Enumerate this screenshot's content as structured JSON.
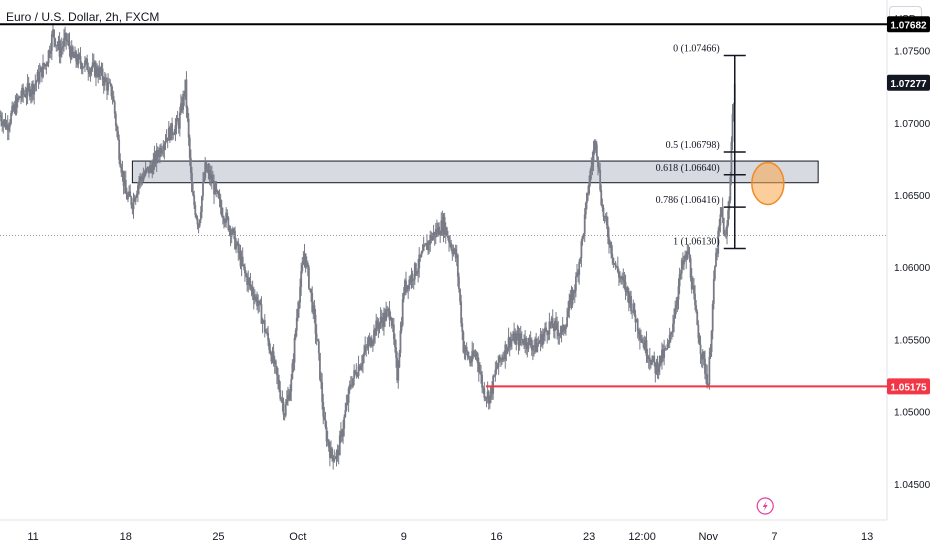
{
  "header": {
    "title": "Euro / U.S. Dollar, 2h, FXCM",
    "currency_button": "USD"
  },
  "colors": {
    "candle": "#787b86",
    "resistance_line": "#000000",
    "support_line": "#f23645",
    "zone_fill": "#d1d4dc",
    "highlight_circle": "#f7a64a",
    "current_price_tag": "#131722"
  },
  "chart_data": {
    "type": "line",
    "symbol": "EURUSD",
    "ylim": [
      1.0425,
      1.0785
    ],
    "y_ticks": [
      "1.07500",
      "1.07000",
      "1.06500",
      "1.06000",
      "1.05500",
      "1.05000",
      "1.04500"
    ],
    "x_ticks": [
      "11",
      "18",
      "25",
      "Oct",
      "9",
      "16",
      "23",
      "12:00",
      "Nov",
      "7",
      "13"
    ],
    "x_tick_days": [
      0,
      7,
      14,
      20,
      28,
      35,
      42,
      46,
      51,
      56,
      63
    ],
    "xlim_days": [
      -2.5,
      64.5
    ],
    "series": [
      {
        "days": [
          -2.5,
          -2,
          -1,
          0,
          1,
          1.5,
          2,
          2.5,
          3,
          4,
          5,
          6,
          6.5,
          7,
          7.5,
          8,
          9,
          10,
          11,
          11.5,
          12,
          12.5,
          13,
          13.5,
          14,
          15,
          16,
          17,
          18,
          19,
          19.5,
          20,
          20.5,
          21,
          21.5,
          22,
          22.5,
          23,
          24,
          25,
          26,
          27,
          27.5,
          28,
          29,
          30,
          31,
          32,
          32.5,
          33,
          33.5,
          34,
          34.5,
          35,
          36,
          37,
          38,
          39,
          40,
          41,
          41.5,
          42,
          42.5,
          43,
          44,
          45,
          46,
          47,
          48,
          49,
          49.5,
          50,
          50.5,
          51,
          51.5,
          52,
          52.3,
          52.6,
          52.8,
          53
        ],
        "values": [
          1.0705,
          1.0698,
          1.0718,
          1.0725,
          1.0742,
          1.0762,
          1.075,
          1.0758,
          1.0745,
          1.074,
          1.0735,
          1.072,
          1.068,
          1.065,
          1.0645,
          1.066,
          1.067,
          1.069,
          1.07,
          1.0725,
          1.065,
          1.063,
          1.0668,
          1.066,
          1.0645,
          1.0625,
          1.0595,
          1.0575,
          1.054,
          1.05,
          1.052,
          1.0575,
          1.061,
          1.058,
          1.0545,
          1.049,
          1.047,
          1.047,
          1.052,
          1.054,
          1.056,
          1.057,
          1.0525,
          1.0585,
          1.06,
          1.062,
          1.063,
          1.0605,
          1.0545,
          1.0535,
          1.054,
          1.0515,
          1.051,
          1.053,
          1.055,
          1.055,
          1.0545,
          1.056,
          1.0555,
          1.059,
          1.062,
          1.066,
          1.069,
          1.064,
          1.06,
          1.058,
          1.055,
          1.053,
          1.0545,
          1.06,
          1.061,
          1.057,
          1.054,
          1.052,
          1.06,
          1.064,
          1.0615,
          1.065,
          1.07,
          1.0727
        ]
      }
    ],
    "levels": {
      "resistance": {
        "value": 1.07682,
        "label": "1.07682"
      },
      "support": {
        "value": 1.05175,
        "label": "1.05175"
      },
      "current": {
        "value": 1.07277,
        "label": "1.07277"
      }
    },
    "zone": {
      "from": 1.06585,
      "to": 1.06735,
      "start_day": 7.5,
      "end_day": 59.3
    },
    "fibonacci": [
      {
        "label": "0 (1.07466)",
        "value": 1.07466
      },
      {
        "label": "0.5 (1.06798)",
        "value": 1.06798
      },
      {
        "label": "0.618 (1.06640)",
        "value": 1.0664
      },
      {
        "label": "0.786 (1.06416)",
        "value": 1.06416
      },
      {
        "label": "1 (1.06130)",
        "value": 1.0613
      }
    ],
    "fib_day": 53,
    "dotted_level": 1.0622,
    "highlight": {
      "day": 55.5,
      "value": 1.0658
    }
  }
}
